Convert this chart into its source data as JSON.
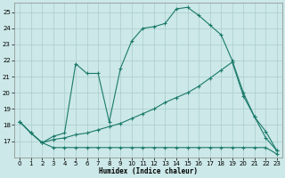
{
  "xlabel": "Humidex (Indice chaleur)",
  "background_color": "#cce8e8",
  "grid_color": "#aacccc",
  "line_color": "#1a7a6a",
  "xlim": [
    -0.5,
    23.5
  ],
  "ylim": [
    16,
    25.6
  ],
  "yticks": [
    17,
    18,
    19,
    20,
    21,
    22,
    23,
    24,
    25
  ],
  "xticks": [
    0,
    1,
    2,
    3,
    4,
    5,
    6,
    7,
    8,
    9,
    10,
    11,
    12,
    13,
    14,
    15,
    16,
    17,
    18,
    19,
    20,
    21,
    22,
    23
  ],
  "line1_x": [
    0,
    1,
    2,
    3,
    4,
    5,
    6,
    7,
    8,
    9,
    10,
    11,
    12,
    13,
    14,
    15,
    16,
    17,
    18,
    19,
    20,
    21,
    22,
    23
  ],
  "line1_y": [
    18.2,
    17.5,
    16.9,
    16.6,
    16.6,
    16.6,
    16.6,
    16.6,
    16.6,
    16.6,
    16.6,
    16.6,
    16.6,
    16.6,
    16.6,
    16.6,
    16.6,
    16.6,
    16.6,
    16.6,
    16.6,
    16.6,
    16.6,
    16.2
  ],
  "line2_x": [
    0,
    1,
    2,
    3,
    4,
    5,
    6,
    7,
    8,
    9,
    10,
    11,
    12,
    13,
    14,
    15,
    16,
    17,
    18,
    19,
    20,
    21,
    22,
    23
  ],
  "line2_y": [
    18.2,
    17.5,
    16.9,
    17.3,
    17.5,
    21.8,
    21.2,
    21.2,
    18.2,
    21.5,
    23.2,
    24.0,
    24.1,
    24.3,
    25.2,
    25.3,
    24.8,
    24.2,
    23.6,
    22.0,
    20.0,
    18.5,
    17.2,
    16.4
  ],
  "line3_x": [
    0,
    1,
    2,
    3,
    4,
    5,
    6,
    7,
    8,
    9,
    10,
    11,
    12,
    13,
    14,
    15,
    16,
    17,
    18,
    19,
    20,
    21,
    22,
    23
  ],
  "line3_y": [
    18.2,
    17.5,
    16.9,
    17.1,
    17.2,
    17.4,
    17.5,
    17.7,
    17.9,
    18.1,
    18.4,
    18.7,
    19.0,
    19.4,
    19.7,
    20.0,
    20.4,
    20.9,
    21.4,
    21.9,
    19.8,
    18.5,
    17.6,
    16.4
  ]
}
